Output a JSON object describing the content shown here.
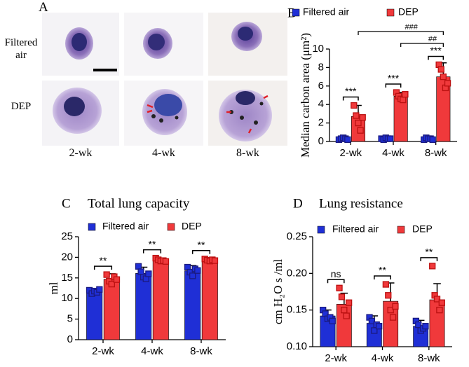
{
  "panel_a": {
    "panel": "A",
    "rows": [
      "Filtered air",
      "DEP"
    ],
    "columns": [
      "2-wk",
      "4-wk",
      "8-wk"
    ]
  },
  "chart_data": [
    {
      "type": "bar",
      "panel": "B",
      "ylabel": "Median carbon area (μm²)",
      "categories": [
        "2-wk",
        "4-wk",
        "8-wk"
      ],
      "series": [
        {
          "name": "Filtered air",
          "color": "#1f2fd6",
          "values": [
            0.3,
            0.3,
            0.3
          ],
          "errors": [
            0.1,
            0.1,
            0.1
          ],
          "points": [
            [
              0.2,
              0.3,
              0.4,
              0.3,
              0.2
            ],
            [
              0.3,
              0.2,
              0.4,
              0.3,
              0.3
            ],
            [
              0.2,
              0.4,
              0.3,
              0.3,
              0.2
            ]
          ]
        },
        {
          "name": "DEP",
          "color": "#f0393b",
          "values": [
            2.7,
            4.9,
            7.0
          ],
          "errors": [
            1.2,
            0.4,
            1.5
          ],
          "points": [
            [
              3.9,
              2.8,
              2.0,
              1.2,
              2.6
            ],
            [
              5.3,
              4.9,
              4.6,
              4.5,
              5.1
            ],
            [
              8.3,
              7.8,
              7.0,
              5.8,
              6.3
            ]
          ]
        }
      ],
      "ylim": [
        0,
        10
      ],
      "yticks": [
        0,
        2,
        4,
        6,
        8,
        10
      ],
      "comparisons": [
        {
          "label": "***",
          "at": "2-wk"
        },
        {
          "label": "***",
          "at": "4-wk"
        },
        {
          "label": "***",
          "at": "8-wk"
        },
        {
          "label": "###",
          "from": "2-wk",
          "to": "8-wk"
        },
        {
          "label": "##",
          "from": "4-wk",
          "to": "8-wk"
        }
      ]
    },
    {
      "type": "bar",
      "panel": "C",
      "title": "Total lung capacity",
      "ylabel": "ml",
      "categories": [
        "2-wk",
        "4-wk",
        "8-wk"
      ],
      "series": [
        {
          "name": "Filtered air",
          "color": "#1f2fd6",
          "values": [
            11.7,
            16.1,
            16.7
          ],
          "errors": [
            0.6,
            1.5,
            1.3
          ],
          "points": [
            [
              12.0,
              11.2,
              11.8,
              11.5,
              12.2
            ],
            [
              17.8,
              16.5,
              15.2,
              14.8,
              16.0
            ],
            [
              17.6,
              16.4,
              15.5,
              17.2,
              16.8
            ]
          ]
        },
        {
          "name": "DEP",
          "color": "#f0393b",
          "values": [
            14.7,
            19.3,
            19.3
          ],
          "errors": [
            1.3,
            0.5,
            0.5
          ],
          "points": [
            [
              15.8,
              14.2,
              13.5,
              15.3,
              14.6
            ],
            [
              19.8,
              19.4,
              19.1,
              19.2,
              19.0
            ],
            [
              19.6,
              19.3,
              19.1,
              19.4,
              19.2
            ]
          ]
        }
      ],
      "ylim": [
        0,
        25
      ],
      "yticks": [
        0,
        5,
        10,
        15,
        20,
        25
      ],
      "comparisons": [
        {
          "label": "**",
          "at": "2-wk"
        },
        {
          "label": "**",
          "at": "4-wk"
        },
        {
          "label": "**",
          "at": "8-wk"
        }
      ]
    },
    {
      "type": "bar",
      "panel": "D",
      "title": "Lung resistance",
      "ylabel": "cm H₂O s /ml",
      "categories": [
        "2-wk",
        "4-wk",
        "8-wk"
      ],
      "series": [
        {
          "name": "Filtered air",
          "color": "#1f2fd6",
          "values": [
            0.142,
            0.132,
            0.128
          ],
          "errors": [
            0.008,
            0.01,
            0.008
          ],
          "points": [
            [
              0.15,
              0.145,
              0.138,
              0.14,
              0.135
            ],
            [
              0.14,
              0.135,
              0.122,
              0.13,
              0.128
            ],
            [
              0.135,
              0.13,
              0.122,
              0.125,
              0.128
            ]
          ]
        },
        {
          "name": "DEP",
          "color": "#f0393b",
          "values": [
            0.158,
            0.162,
            0.164
          ],
          "errors": [
            0.015,
            0.025,
            0.022
          ],
          "points": [
            [
              0.18,
              0.168,
              0.15,
              0.142,
              0.16
            ],
            [
              0.185,
              0.17,
              0.15,
              0.14,
              0.155
            ],
            [
              0.21,
              0.17,
              0.165,
              0.15,
              0.16
            ]
          ]
        }
      ],
      "ylim": [
        0.1,
        0.25
      ],
      "yticks": [
        {
          "value": 0.1,
          "label": "0.10"
        },
        0.15,
        {
          "value": 0.2,
          "label": "0.20"
        },
        0.25
      ],
      "comparisons": [
        {
          "label": "ns",
          "at": "2-wk"
        },
        {
          "label": "**",
          "at": "4-wk"
        },
        {
          "label": "**",
          "at": "8-wk"
        }
      ]
    }
  ]
}
